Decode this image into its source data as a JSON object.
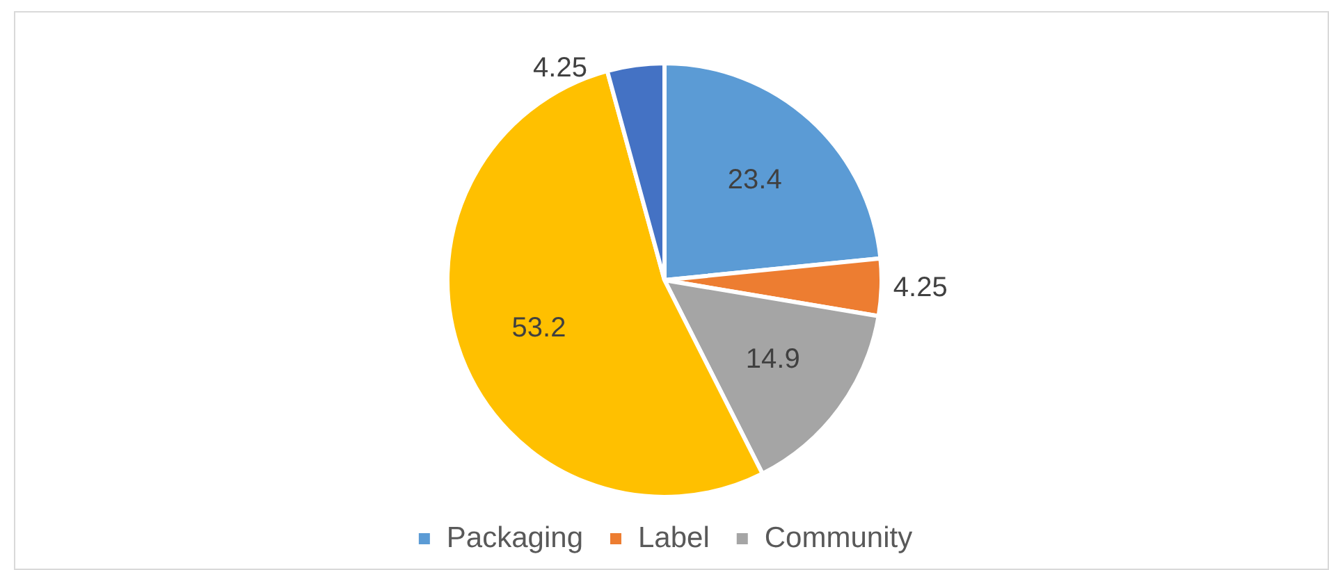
{
  "chart_data": {
    "type": "pie",
    "categories": [
      "Packaging",
      "Label",
      "Community",
      null,
      null
    ],
    "values": [
      23.4,
      4.25,
      14.9,
      53.2,
      4.25
    ],
    "colors": [
      "#5b9bd5",
      "#ed7d31",
      "#a5a5a5",
      "#ffc000",
      "#4472c4"
    ],
    "data_labels": true,
    "legend": "bottom"
  }
}
